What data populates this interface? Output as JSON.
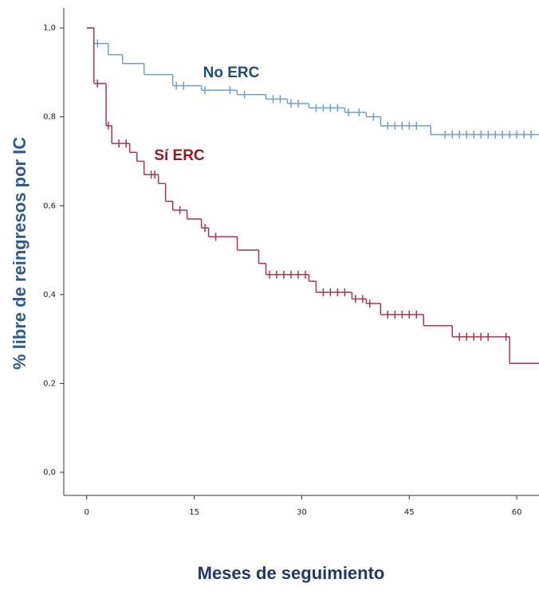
{
  "chart_data": {
    "type": "step",
    "xlabel": "Meses de seguimiento",
    "ylabel": "% libre de reingresos por IC",
    "xlim": [
      -3.2,
      63.1
    ],
    "ylim": [
      -0.052,
      1.045
    ],
    "xticks": [
      0,
      15,
      30,
      45,
      60
    ],
    "yticks": [
      {
        "value": 0,
        "label": "0,0"
      },
      {
        "value": 0.2,
        "label": "0,2"
      },
      {
        "value": 0.4,
        "label": "0,4"
      },
      {
        "value": 0.6,
        "label": "0,6"
      },
      {
        "value": 0.8,
        "label": "0,8"
      },
      {
        "value": 1,
        "label": "1,0"
      }
    ],
    "series": [
      {
        "name": "No ERC",
        "color": "#6b9fd1",
        "label_color": "#1f4e79",
        "x": [
          0,
          1,
          3,
          5,
          8,
          12,
          16,
          21,
          25,
          28,
          31,
          36,
          39,
          41,
          48
        ],
        "values": [
          1,
          0.965,
          0.94,
          0.92,
          0.895,
          0.87,
          0.86,
          0.85,
          0.84,
          0.83,
          0.82,
          0.81,
          0.8,
          0.78,
          0.76
        ],
        "censored_x": [
          1.5,
          12.5,
          13.5,
          16.5,
          20,
          22,
          26,
          27,
          28.5,
          29.5,
          32,
          33,
          34,
          35,
          36.5,
          38,
          40,
          42,
          43,
          44,
          45,
          46,
          50,
          51,
          52,
          53,
          54,
          55,
          56,
          57,
          58,
          59,
          60,
          61,
          62
        ],
        "censored_values": [
          0.965,
          0.87,
          0.87,
          0.86,
          0.86,
          0.85,
          0.84,
          0.84,
          0.83,
          0.83,
          0.82,
          0.82,
          0.82,
          0.82,
          0.81,
          0.81,
          0.8,
          0.78,
          0.78,
          0.78,
          0.78,
          0.78,
          0.76,
          0.76,
          0.76,
          0.76,
          0.76,
          0.76,
          0.76,
          0.76,
          0.76,
          0.76,
          0.76,
          0.76,
          0.76
        ]
      },
      {
        "name": "Sí ERC",
        "color": "#a8334a",
        "label_color": "#a0111f",
        "x": [
          0,
          1,
          2.7,
          3.5,
          6,
          7,
          8,
          10,
          11,
          12,
          14,
          16,
          17,
          21,
          24,
          25,
          31,
          32,
          37,
          39,
          41,
          47,
          51,
          59
        ],
        "values": [
          1,
          0.875,
          0.78,
          0.74,
          0.72,
          0.7,
          0.67,
          0.65,
          0.61,
          0.59,
          0.57,
          0.55,
          0.53,
          0.5,
          0.47,
          0.445,
          0.43,
          0.405,
          0.39,
          0.38,
          0.355,
          0.33,
          0.305,
          0.245
        ],
        "censored_x": [
          1.5,
          3,
          4.5,
          5.5,
          9,
          9.5,
          13,
          16.5,
          18,
          25.5,
          26.5,
          27.5,
          28.5,
          29.5,
          30.5,
          33,
          34,
          35,
          36,
          37.5,
          38.5,
          39.5,
          42,
          43,
          44,
          45,
          46,
          52,
          53,
          54,
          55,
          56,
          58.5
        ],
        "censored_values": [
          0.875,
          0.78,
          0.74,
          0.74,
          0.67,
          0.67,
          0.59,
          0.55,
          0.53,
          0.445,
          0.445,
          0.445,
          0.445,
          0.445,
          0.445,
          0.405,
          0.405,
          0.405,
          0.405,
          0.39,
          0.39,
          0.38,
          0.355,
          0.355,
          0.355,
          0.355,
          0.355,
          0.305,
          0.305,
          0.305,
          0.305,
          0.305,
          0.305
        ]
      }
    ]
  }
}
